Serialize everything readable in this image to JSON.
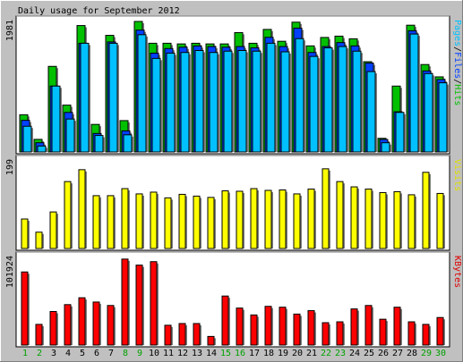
{
  "chart_data": [
    {
      "type": "bar",
      "panel": "hits",
      "title": "Daily usage for September 2012",
      "ymax_label": "1981",
      "legend": {
        "parts": [
          {
            "text": "Pages",
            "color": "#00c0ff"
          },
          {
            "text": "/",
            "color": "#000000"
          },
          {
            "text": "Files",
            "color": "#0040ff"
          },
          {
            "text": "/",
            "color": "#000000"
          },
          {
            "text": "Hits",
            "color": "#00c000"
          }
        ],
        "placement": "right"
      },
      "ylim": [
        0,
        1981
      ],
      "series": [
        {
          "name": "Hits",
          "color": "#00c000",
          "values": [
            565,
            191,
            1299,
            711,
            1919,
            418,
            1770,
            476,
            1981,
            1650,
            1650,
            1640,
            1650,
            1640,
            1640,
            1812,
            1650,
            1860,
            1680,
            1970,
            1610,
            1738,
            1758,
            1718,
            1370,
            207,
            1000,
            1924,
            1327,
            1140
          ]
        },
        {
          "name": "Files",
          "color": "#0040ff",
          "values": [
            480,
            140,
            1000,
            600,
            1650,
            280,
            1670,
            320,
            1850,
            1500,
            1570,
            1590,
            1610,
            1600,
            1590,
            1600,
            1580,
            1740,
            1600,
            1880,
            1510,
            1600,
            1660,
            1610,
            1350,
            190,
            610,
            1840,
            1230,
            1100
          ]
        },
        {
          "name": "Pages",
          "color": "#00c0ff",
          "values": [
            390,
            90,
            1000,
            500,
            1650,
            250,
            1650,
            260,
            1780,
            1420,
            1500,
            1510,
            1540,
            1510,
            1530,
            1540,
            1530,
            1650,
            1520,
            1720,
            1450,
            1580,
            1600,
            1530,
            1220,
            140,
            600,
            1790,
            1190,
            1050
          ]
        }
      ]
    },
    {
      "type": "bar",
      "panel": "visits",
      "ymax_label": "199",
      "legend": {
        "parts": [
          {
            "text": "Visits",
            "color": "#e0e000"
          }
        ],
        "placement": "right"
      },
      "ylim": [
        0,
        199
      ],
      "series": [
        {
          "name": "Visits",
          "color": "#ffff00",
          "values": [
            67,
            37,
            83,
            152,
            179,
            120,
            120,
            136,
            124,
            128,
            115,
            123,
            119,
            116,
            131,
            130,
            136,
            132,
            133,
            124,
            135,
            181,
            152,
            140,
            135,
            127,
            129,
            122,
            173,
            125
          ]
        }
      ]
    },
    {
      "type": "bar",
      "panel": "kbytes",
      "ymax_label": "101924",
      "legend": {
        "parts": [
          {
            "text": "KBytes",
            "color": "#e00000"
          }
        ],
        "placement": "right"
      },
      "ylim": [
        0,
        101924
      ],
      "series": [
        {
          "name": "KBytes",
          "color": "#ff0000",
          "values": [
            85000,
            24000,
            39000,
            47000,
            55000,
            50000,
            46000,
            100000,
            93000,
            97000,
            23000,
            25000,
            25000,
            10000,
            57000,
            43000,
            35000,
            45000,
            44000,
            36000,
            40000,
            26000,
            27000,
            42000,
            46000,
            30000,
            44000,
            27000,
            24000,
            32000
          ]
        }
      ]
    }
  ],
  "x_axis": {
    "days": [
      "1",
      "2",
      "3",
      "4",
      "5",
      "6",
      "7",
      "8",
      "9",
      "10",
      "11",
      "12",
      "13",
      "14",
      "15",
      "16",
      "17",
      "18",
      "19",
      "20",
      "21",
      "22",
      "23",
      "24",
      "25",
      "26",
      "27",
      "28",
      "29",
      "30"
    ],
    "weekend_days": [
      1,
      2,
      8,
      9,
      15,
      16,
      22,
      23,
      29,
      30
    ],
    "weekday_color": "#000000",
    "weekend_color": "#00a000"
  }
}
